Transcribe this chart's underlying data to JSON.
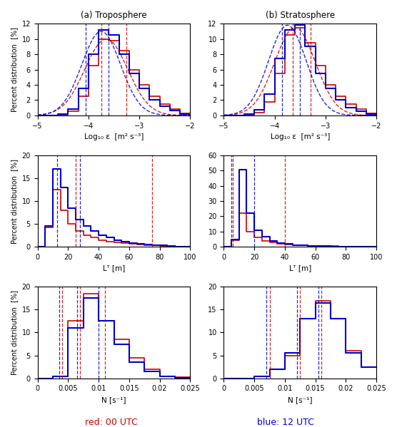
{
  "title_a": "(a) Troposphere",
  "title_b": "(b) Stratosphere",
  "ylabel": "Percent distribution  [%]",
  "xlabel_eps": "Log₁₀ ε  [m² s⁻³]",
  "xlabel_LT": "Lᵀ [m]",
  "xlabel_N": "N [s⁻¹]",
  "eps_xlim": [
    -5,
    -2
  ],
  "eps_ylim": [
    0,
    12
  ],
  "eps_bins": [
    -5.0,
    -4.8,
    -4.6,
    -4.4,
    -4.2,
    -4.0,
    -3.8,
    -3.6,
    -3.4,
    -3.2,
    -3.0,
    -2.8,
    -2.6,
    -2.4,
    -2.2,
    -2.0
  ],
  "tropo_eps_red": [
    0.0,
    0.0,
    0.1,
    0.5,
    2.5,
    6.5,
    10.0,
    9.8,
    8.5,
    6.0,
    4.0,
    2.5,
    1.5,
    0.8,
    0.3,
    0.0
  ],
  "tropo_eps_blue": [
    0.0,
    0.0,
    0.2,
    0.8,
    3.5,
    8.0,
    11.2,
    10.5,
    8.0,
    5.5,
    3.5,
    2.0,
    1.2,
    0.6,
    0.2,
    0.0
  ],
  "tropo_eps_red_vlines": [
    -3.75,
    -3.25
  ],
  "tropo_eps_blue_vlines": [
    -4.05,
    -3.6
  ],
  "tropo_eps_red_curve_mu": -3.65,
  "tropo_eps_red_curve_sig": 0.42,
  "tropo_eps_red_curve_amp": 10.0,
  "tropo_eps_blue_curve_mu": -3.75,
  "tropo_eps_blue_curve_sig": 0.38,
  "tropo_eps_blue_curve_amp": 11.0,
  "strato_eps_red": [
    0.0,
    0.0,
    0.1,
    0.4,
    1.8,
    5.5,
    10.5,
    11.5,
    9.5,
    6.5,
    4.0,
    2.5,
    1.5,
    0.8,
    0.3,
    0.0
  ],
  "strato_eps_blue": [
    0.0,
    0.0,
    0.2,
    0.7,
    2.8,
    7.5,
    11.2,
    11.8,
    9.0,
    5.5,
    3.5,
    2.0,
    1.0,
    0.5,
    0.15,
    0.0
  ],
  "strato_eps_red_vlines": [
    -3.65,
    -3.3
  ],
  "strato_eps_blue_vlines": [
    -3.85,
    -3.5
  ],
  "strato_eps_red_curve_mu": -3.6,
  "strato_eps_red_curve_sig": 0.4,
  "strato_eps_red_curve_amp": 11.5,
  "strato_eps_blue_curve_mu": -3.75,
  "strato_eps_blue_curve_sig": 0.37,
  "strato_eps_blue_curve_amp": 11.8,
  "LT_bins": [
    0,
    5,
    10,
    15,
    20,
    25,
    30,
    35,
    40,
    45,
    50,
    55,
    60,
    65,
    70,
    75,
    80,
    85,
    90,
    95,
    100
  ],
  "tropo_LT_ylim": [
    0,
    20
  ],
  "tropo_LT_red": [
    0.0,
    4.2,
    12.5,
    8.0,
    5.0,
    3.5,
    2.5,
    2.0,
    1.5,
    1.2,
    1.0,
    0.8,
    0.6,
    0.5,
    0.4,
    0.3,
    0.2,
    0.15,
    0.1,
    0.05
  ],
  "tropo_LT_blue": [
    0.0,
    4.5,
    17.0,
    13.0,
    8.5,
    6.0,
    4.5,
    3.5,
    2.5,
    2.0,
    1.5,
    1.2,
    0.9,
    0.7,
    0.5,
    0.4,
    0.3,
    0.2,
    0.1,
    0.05
  ],
  "tropo_LT_red_vlines": [
    25,
    75
  ],
  "tropo_LT_blue_vlines": [
    13,
    28
  ],
  "strato_LT_ylim": [
    0,
    60
  ],
  "strato_LT_red": [
    0.0,
    4.5,
    22.0,
    10.0,
    6.0,
    4.0,
    3.0,
    2.2,
    1.7,
    1.3,
    1.0,
    0.8,
    0.6,
    0.5,
    0.4,
    0.3,
    0.25,
    0.2,
    0.1,
    0.05
  ],
  "strato_LT_blue": [
    0.0,
    5.0,
    50.5,
    22.0,
    11.0,
    6.5,
    4.0,
    2.5,
    1.8,
    1.2,
    0.9,
    0.7,
    0.5,
    0.4,
    0.3,
    0.2,
    0.15,
    0.1,
    0.07,
    0.03
  ],
  "strato_LT_red_vlines": [
    6,
    40
  ],
  "strato_LT_blue_vlines": [
    5,
    20
  ],
  "N_xlim": [
    0,
    0.025
  ],
  "N_bins": [
    0.0,
    0.0025,
    0.005,
    0.0075,
    0.01,
    0.0125,
    0.015,
    0.0175,
    0.02,
    0.0225,
    0.025
  ],
  "tropo_N_ylim": [
    0,
    20
  ],
  "tropo_N_red": [
    0.0,
    0.5,
    12.5,
    18.5,
    12.5,
    8.5,
    4.5,
    2.0,
    0.5,
    0.2
  ],
  "tropo_N_blue": [
    0.0,
    0.5,
    11.0,
    17.5,
    12.5,
    7.5,
    3.5,
    1.5,
    0.5,
    0.15
  ],
  "tropo_N_red_vlines": [
    0.004,
    0.007,
    0.011
  ],
  "tropo_N_blue_vlines": [
    0.0035,
    0.0065,
    0.01
  ],
  "strato_N_ylim": [
    0,
    20
  ],
  "strato_N_red": [
    0.0,
    0.0,
    0.5,
    2.0,
    5.0,
    13.0,
    17.0,
    13.0,
    6.0,
    2.5
  ],
  "strato_N_blue": [
    0.0,
    0.0,
    0.5,
    2.0,
    5.5,
    13.0,
    16.5,
    13.0,
    5.5,
    2.5
  ],
  "strato_N_red_vlines": [
    0.0075,
    0.0125,
    0.016
  ],
  "strato_N_blue_vlines": [
    0.007,
    0.012,
    0.0155
  ],
  "red_color": "#cc0000",
  "blue_color": "#0000cc",
  "red_curve_color": "#cc0000",
  "blue_curve_color": "#0000cc",
  "bg_color": "#ffffff",
  "label_red": "red: 00 UTC",
  "label_blue": "blue: 12 UTC"
}
